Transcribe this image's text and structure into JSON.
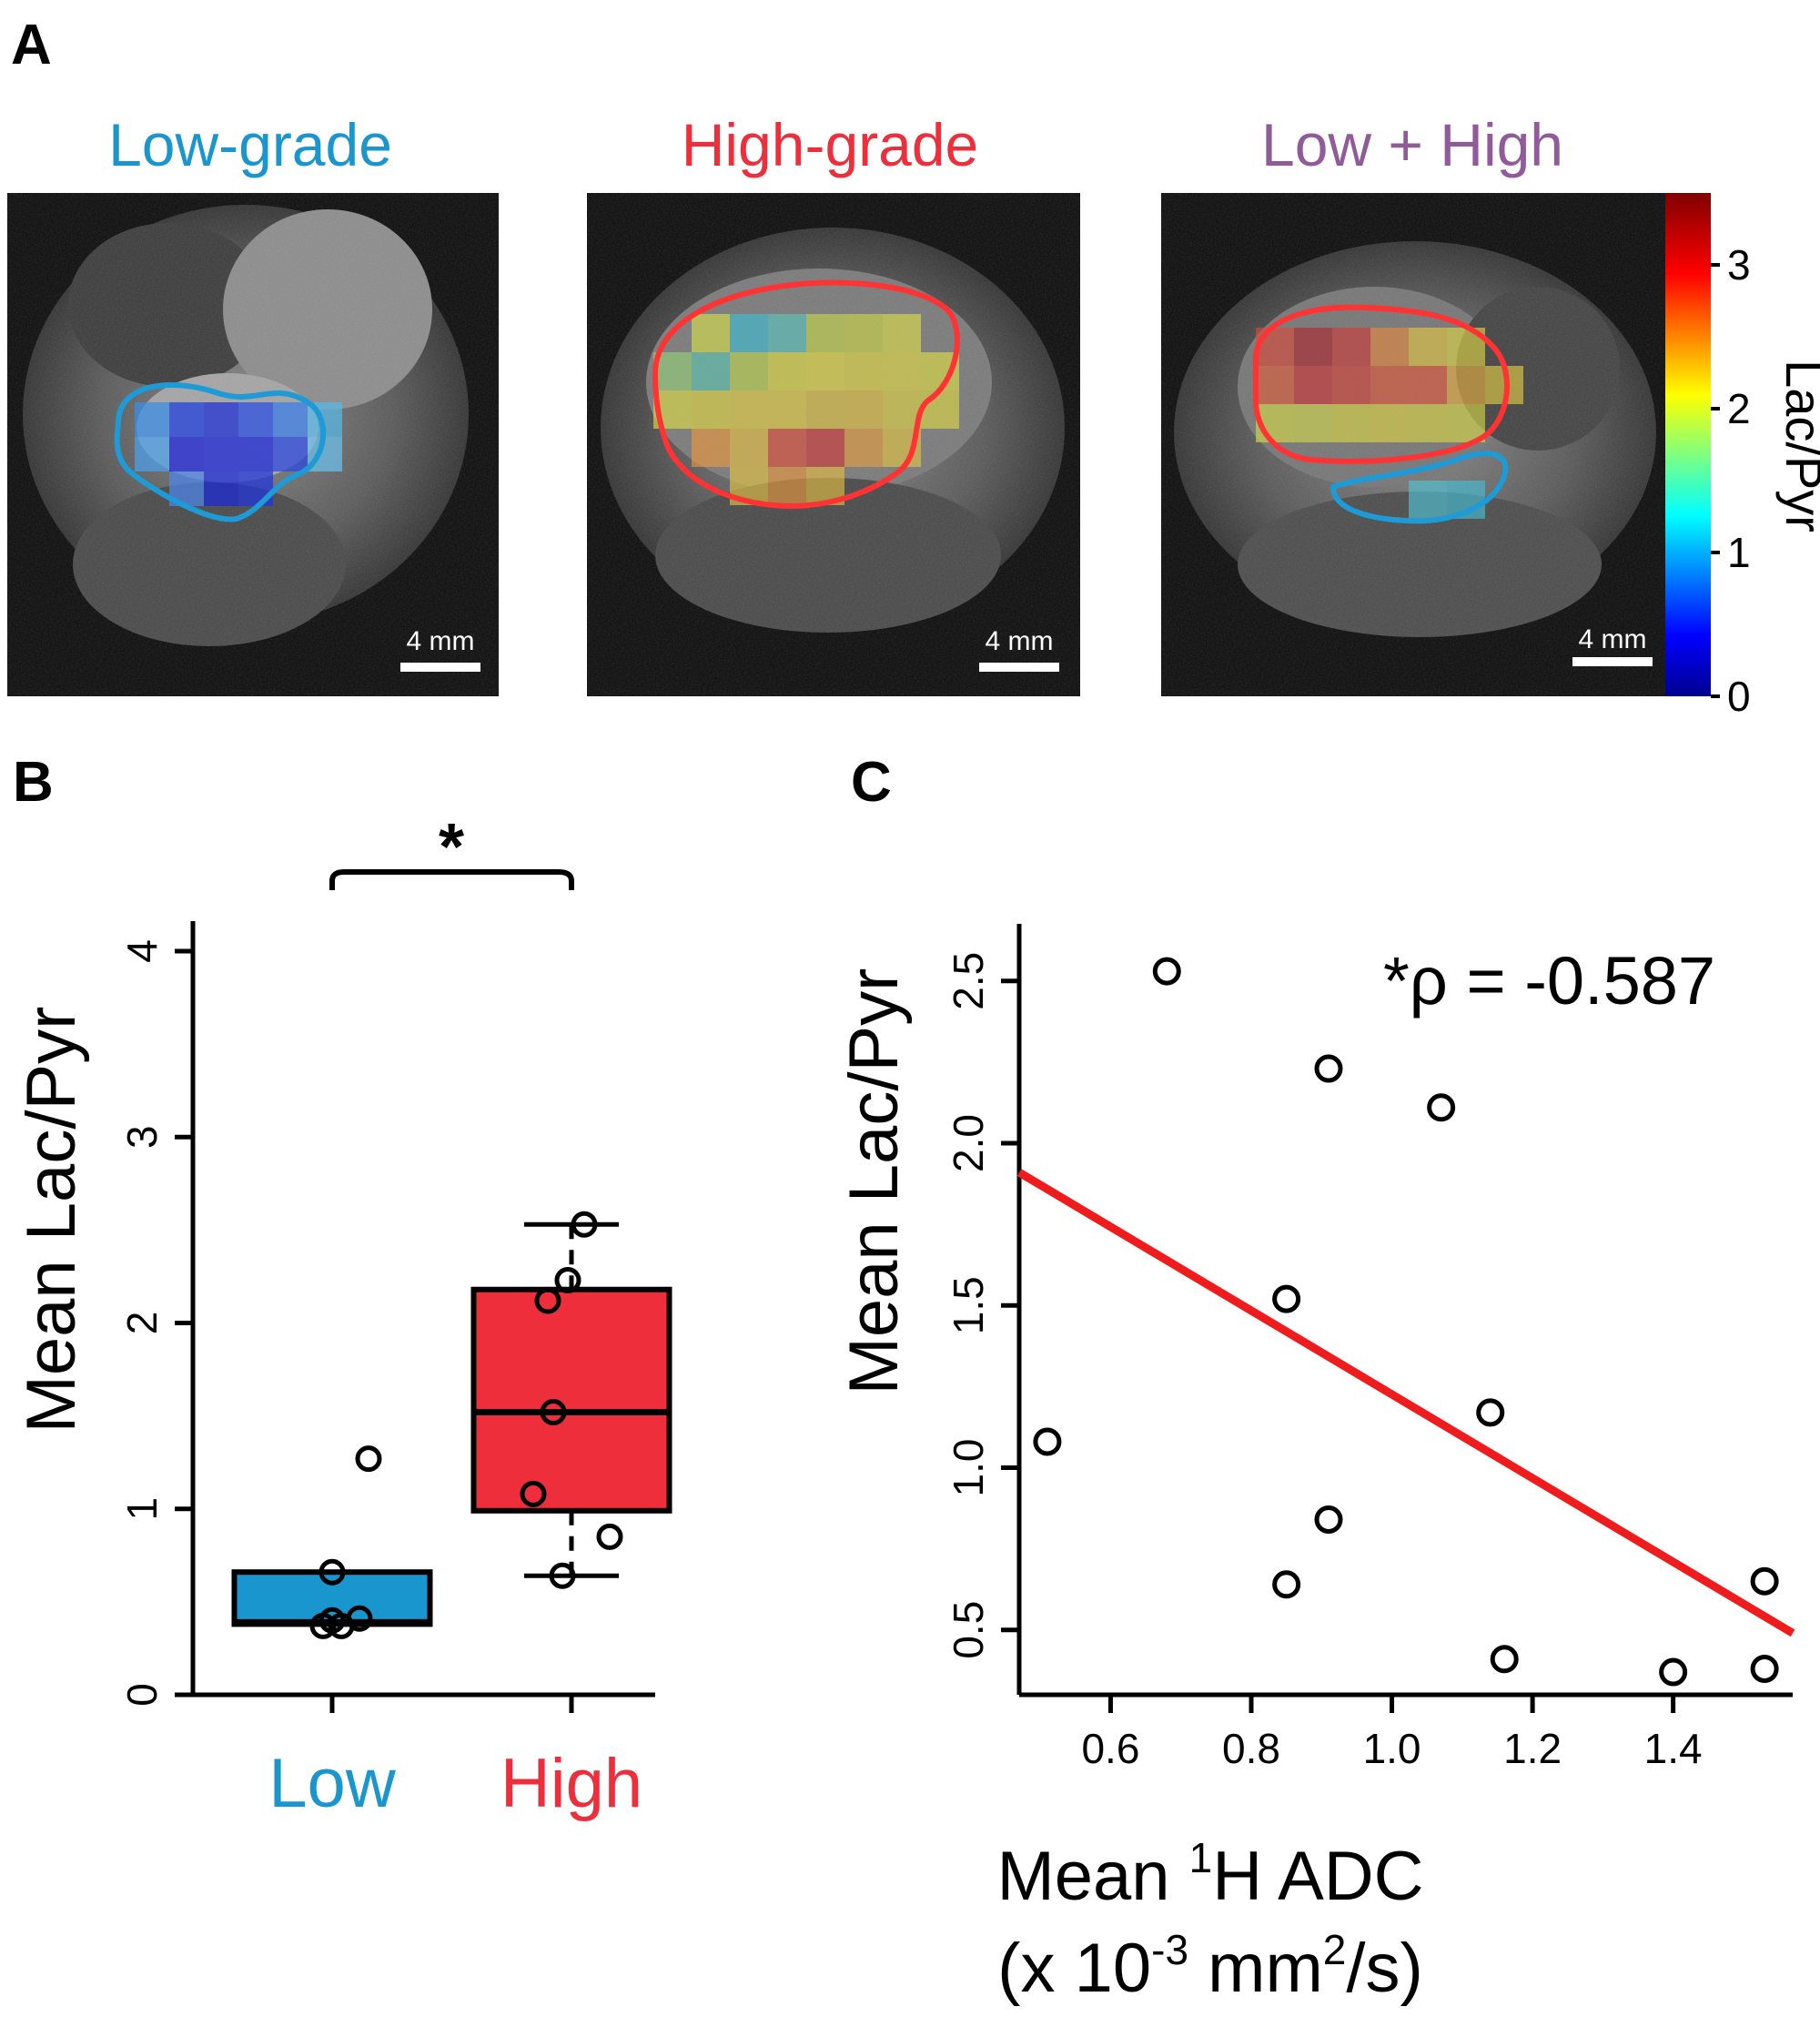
{
  "panel_a": {
    "letter": "A",
    "colorbar": {
      "label": "Lac/Pyr",
      "ticks": [
        "0",
        "1",
        "2",
        "3"
      ],
      "range": [
        0,
        3.5
      ],
      "colormap": [
        "#00008f",
        "#0000ff",
        "#00ffff",
        "#ffff00",
        "#ff0000",
        "#800000"
      ]
    },
    "images": [
      {
        "title": "Low-grade",
        "title_color": "#1a96cf",
        "scale_bar": "4 mm",
        "roi_colors": [
          "#1e9ad6"
        ]
      },
      {
        "title": "High-grade",
        "title_color": "#ee2e3a",
        "scale_bar": "4 mm",
        "roi_colors": [
          "#ff3333"
        ]
      },
      {
        "title": "Low + High",
        "title_color": "#915b9a",
        "scale_bar": "4 mm",
        "roi_colors": [
          "#ff3333",
          "#1e9ad6"
        ]
      }
    ]
  },
  "panel_b": {
    "letter": "B",
    "significance": "*",
    "group_colors": {
      "Low": "#1a96cf",
      "High": "#ee2e3a"
    }
  },
  "panel_c": {
    "letter": "C",
    "annotation": "*ρ = -0.587",
    "xlabel_main": "Mean ",
    "xlabel_sup": "1",
    "xlabel_rest": "H ADC",
    "xlabel_units_pre": "(x 10",
    "xlabel_units_sup": "-3",
    "xlabel_units_mid": " mm",
    "xlabel_units_sup2": "2",
    "xlabel_units_post": "/s)",
    "line_color": "#ee1c1c"
  },
  "chart_data": [
    {
      "type": "box",
      "panel": "B",
      "categories": [
        "Low",
        "High"
      ],
      "ylabel": "Mean Lac/Pyr",
      "ylim": [
        0,
        4
      ],
      "yticks": [
        0,
        1,
        2,
        3,
        4
      ],
      "boxes": [
        {
          "name": "Low",
          "q1": 0.38,
          "median": 0.39,
          "q3": 0.66,
          "whisker_low": 0.38,
          "whisker_high": 0.66,
          "points": [
            0.66,
            0.37,
            0.37,
            0.41,
            0.4,
            1.27
          ]
        },
        {
          "name": "High",
          "q1": 0.99,
          "median": 1.52,
          "q3": 2.18,
          "whisker_low": 0.64,
          "whisker_high": 2.53,
          "points": [
            2.53,
            2.23,
            2.12,
            1.52,
            1.08,
            0.85,
            0.64
          ]
        }
      ]
    },
    {
      "type": "scatter",
      "panel": "C",
      "ylabel": "Mean Lac/Pyr",
      "xlim": [
        0.47,
        1.57
      ],
      "ylim": [
        0.3,
        2.62
      ],
      "xticks": [
        0.6,
        0.8,
        1.0,
        1.2,
        1.4
      ],
      "yticks": [
        0.5,
        1.0,
        1.5,
        2.0,
        2.5
      ],
      "points": [
        {
          "x": 0.51,
          "y": 1.08
        },
        {
          "x": 0.68,
          "y": 2.53
        },
        {
          "x": 0.85,
          "y": 1.52
        },
        {
          "x": 0.85,
          "y": 0.64
        },
        {
          "x": 0.91,
          "y": 2.23
        },
        {
          "x": 0.91,
          "y": 0.84
        },
        {
          "x": 1.07,
          "y": 2.11
        },
        {
          "x": 1.14,
          "y": 1.17
        },
        {
          "x": 1.16,
          "y": 0.41
        },
        {
          "x": 1.4,
          "y": 0.37
        },
        {
          "x": 1.53,
          "y": 0.38
        },
        {
          "x": 1.53,
          "y": 0.65
        }
      ],
      "fit_line": {
        "x": [
          0.47,
          1.57
        ],
        "y": [
          1.91,
          0.49
        ]
      }
    }
  ]
}
